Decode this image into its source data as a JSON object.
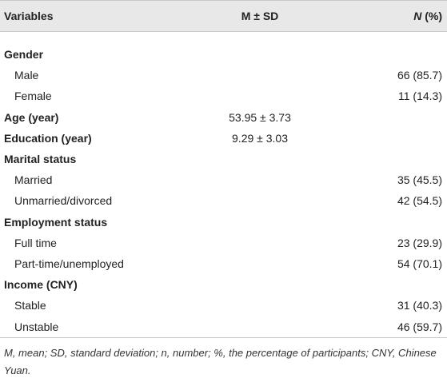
{
  "table": {
    "header": {
      "variables": "Variables",
      "m_sd": "M ± SD",
      "n_pct": {
        "italic": "N",
        "rest": " (%)"
      }
    },
    "rows": [
      {
        "label": "Gender",
        "heading": true
      },
      {
        "label": "Male",
        "n_pct": "66 (85.7)"
      },
      {
        "label": "Female",
        "n_pct": "11 (14.3)"
      },
      {
        "label": "Age (year)",
        "heading": true,
        "m_sd": "53.95 ± 3.73"
      },
      {
        "label": "Education (year)",
        "heading": true,
        "m_sd": "9.29 ± 3.03"
      },
      {
        "label": "Marital status",
        "heading": true
      },
      {
        "label": "Married",
        "n_pct": "35 (45.5)"
      },
      {
        "label": "Unmarried/divorced",
        "n_pct": "42 (54.5)"
      },
      {
        "label": "Employment status",
        "heading": true
      },
      {
        "label": "Full time",
        "n_pct": "23 (29.9)"
      },
      {
        "label": "Part-time/unemployed",
        "n_pct": "54 (70.1)"
      },
      {
        "label": "Income (CNY)",
        "heading": true
      },
      {
        "label": "Stable",
        "n_pct": "31 (40.3)"
      },
      {
        "label": "Unstable",
        "n_pct": "46 (59.7)"
      }
    ],
    "footnote": "M, mean; SD, standard deviation; n, number; %, the percentage of participants; CNY, Chinese Yuan."
  }
}
